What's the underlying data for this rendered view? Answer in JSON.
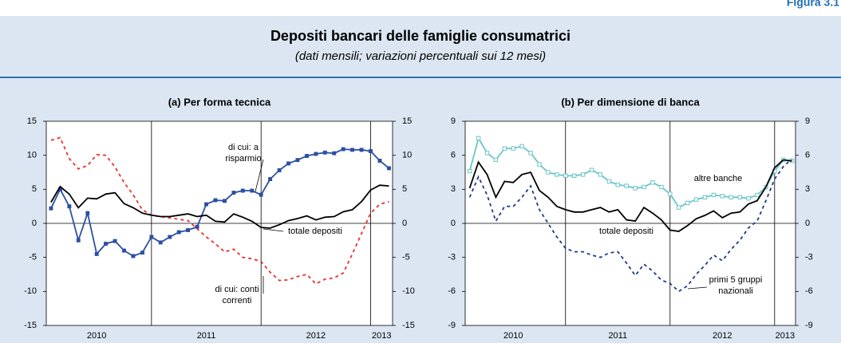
{
  "figure_label": "Figura 3.1",
  "title": "Depositi bancari delle famiglie consumatrici",
  "subtitle": "(dati mensili; variazioni percentuali sui 12 mesi)",
  "chart_data": [
    {
      "type": "line",
      "title": "(a) Per forma tecnica",
      "x": [
        2010.083,
        2010.167,
        2010.25,
        2010.333,
        2010.417,
        2010.5,
        2010.583,
        2010.667,
        2010.75,
        2010.833,
        2010.917,
        2011,
        2011.083,
        2011.167,
        2011.25,
        2011.333,
        2011.417,
        2011.5,
        2011.583,
        2011.667,
        2011.75,
        2011.833,
        2011.917,
        2012,
        2012.083,
        2012.167,
        2012.25,
        2012.333,
        2012.417,
        2012.5,
        2012.583,
        2012.667,
        2012.75,
        2012.833,
        2012.917,
        2013,
        2013.083,
        2013.167
      ],
      "xlim": [
        2010.04,
        2013.2
      ],
      "xticks": [
        {
          "value": 2010.5,
          "label": "2010"
        },
        {
          "value": 2011.5,
          "label": "2011"
        },
        {
          "value": 2012.5,
          "label": "2012"
        },
        {
          "value": 2013.1,
          "label": "2013"
        }
      ],
      "year_lines": [
        2011,
        2012,
        2013
      ],
      "ylim": [
        -15,
        15
      ],
      "yticks": [
        -15,
        -10,
        -5,
        0,
        5,
        10,
        15
      ],
      "series": [
        {
          "label": [
            "di cui: conti",
            "correnti"
          ],
          "color": "#e8312f",
          "dashed": true,
          "marker": "none",
          "values": [
            12.2,
            12.6,
            9.5,
            8.0,
            8.5,
            10.1,
            10.0,
            8.3,
            6.0,
            4.2,
            2.0,
            1.2,
            1.0,
            0.8,
            0.6,
            0.4,
            -0.8,
            -2.0,
            -3.0,
            -4.2,
            -3.8,
            -5.0,
            -5.2,
            -5.6,
            -7.2,
            -8.4,
            -8.3,
            -7.8,
            -7.5,
            -8.9,
            -8.2,
            -8.0,
            -7.3,
            -4.5,
            -1.5,
            1.5,
            2.8,
            3.2
          ]
        },
        {
          "label": [
            "di cui: a",
            "risparmio"
          ],
          "color": "#2b4fa3",
          "dashed": false,
          "marker": "square",
          "values": [
            2.2,
            5.0,
            2.5,
            -2.5,
            1.5,
            -4.5,
            -3.0,
            -2.6,
            -4.0,
            -4.8,
            -4.3,
            -2.0,
            -2.8,
            -2.0,
            -1.3,
            -1.0,
            -0.5,
            2.8,
            3.4,
            3.3,
            4.5,
            4.8,
            4.8,
            4.2,
            6.5,
            7.8,
            8.8,
            9.3,
            9.9,
            10.2,
            10.4,
            10.3,
            10.9,
            10.8,
            10.8,
            10.6,
            9.2,
            8.1
          ]
        },
        {
          "label": [
            "totale depositi"
          ],
          "color": "#000000",
          "dashed": false,
          "marker": "none",
          "values": [
            3.1,
            5.4,
            4.3,
            2.3,
            3.7,
            3.6,
            4.3,
            4.5,
            2.9,
            2.3,
            1.5,
            1.2,
            1.0,
            1.0,
            1.2,
            1.4,
            1.0,
            1.2,
            0.3,
            0.2,
            1.4,
            0.9,
            0.3,
            -0.6,
            -0.7,
            -0.2,
            0.4,
            0.7,
            1.1,
            0.5,
            0.9,
            1.0,
            1.7,
            2.0,
            3.2,
            4.9,
            5.6,
            5.5
          ]
        }
      ]
    },
    {
      "type": "line",
      "title": "(b) Per dimensione di banca",
      "x": [
        2010.083,
        2010.167,
        2010.25,
        2010.333,
        2010.417,
        2010.5,
        2010.583,
        2010.667,
        2010.75,
        2010.833,
        2010.917,
        2011,
        2011.083,
        2011.167,
        2011.25,
        2011.333,
        2011.417,
        2011.5,
        2011.583,
        2011.667,
        2011.75,
        2011.833,
        2011.917,
        2012,
        2012.083,
        2012.167,
        2012.25,
        2012.333,
        2012.417,
        2012.5,
        2012.583,
        2012.667,
        2012.75,
        2012.833,
        2012.917,
        2013,
        2013.083,
        2013.167
      ],
      "xlim": [
        2010.04,
        2013.2
      ],
      "xticks": [
        {
          "value": 2010.5,
          "label": "2010"
        },
        {
          "value": 2011.5,
          "label": "2011"
        },
        {
          "value": 2012.5,
          "label": "2012"
        },
        {
          "value": 2013.1,
          "label": "2013"
        }
      ],
      "year_lines": [
        2011,
        2012,
        2013
      ],
      "ylim": [
        -9,
        9
      ],
      "yticks": [
        -9,
        -6,
        -3,
        0,
        3,
        6,
        9
      ],
      "series": [
        {
          "label": [
            "primi 5 gruppi",
            "nazionali"
          ],
          "color": "#1f3a8a",
          "dashed": true,
          "marker": "none",
          "values": [
            2.3,
            4.1,
            2.5,
            0.2,
            1.5,
            1.5,
            2.3,
            3.3,
            1.2,
            0.0,
            -1.2,
            -2.2,
            -2.5,
            -2.5,
            -2.8,
            -3.0,
            -2.6,
            -2.5,
            -3.5,
            -4.6,
            -3.6,
            -4.2,
            -5.0,
            -5.3,
            -6.0,
            -5.5,
            -4.5,
            -3.7,
            -2.8,
            -3.3,
            -2.3,
            -1.5,
            -0.4,
            0.2,
            2.0,
            3.9,
            5.0,
            5.7
          ]
        },
        {
          "label": [
            "altre banche"
          ],
          "color": "#6cc5c9",
          "dashed": false,
          "marker": "square-open",
          "values": [
            4.6,
            7.5,
            6.2,
            5.6,
            6.6,
            6.6,
            6.8,
            6.2,
            5.2,
            4.5,
            4.3,
            4.2,
            4.2,
            4.3,
            4.7,
            4.3,
            3.7,
            3.4,
            3.3,
            3.1,
            3.2,
            3.6,
            3.2,
            2.6,
            1.4,
            1.8,
            2.1,
            2.3,
            2.5,
            2.4,
            2.3,
            2.3,
            2.2,
            2.5,
            3.2,
            4.6,
            5.6,
            5.5
          ]
        },
        {
          "label": [
            "totale depositi"
          ],
          "color": "#000000",
          "dashed": false,
          "marker": "none",
          "values": [
            3.1,
            5.4,
            4.3,
            2.3,
            3.7,
            3.6,
            4.3,
            4.5,
            2.9,
            2.3,
            1.5,
            1.2,
            1.0,
            1.0,
            1.2,
            1.4,
            1.0,
            1.2,
            0.3,
            0.2,
            1.4,
            0.9,
            0.3,
            -0.6,
            -0.7,
            -0.2,
            0.4,
            0.7,
            1.1,
            0.5,
            0.9,
            1.0,
            1.7,
            2.0,
            3.2,
            4.9,
            5.6,
            5.5
          ]
        }
      ]
    }
  ]
}
